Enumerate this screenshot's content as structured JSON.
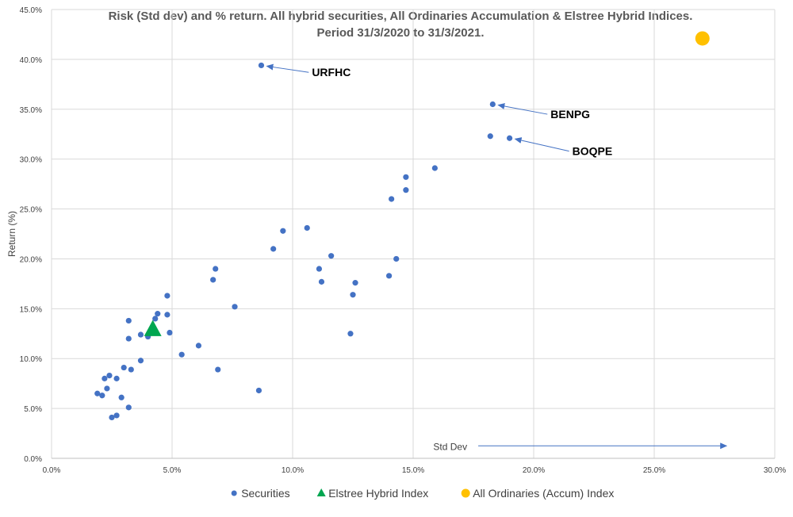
{
  "chart_data": {
    "type": "scatter",
    "title_line1": "Risk (Std dev) and % return. All hybrid securities, All Ordinaries Accumulation & Elstree Hybrid Indices.",
    "title_line2": "Period 31/3/2020 to 31/3/2021.",
    "xlabel": "",
    "ylabel": "Return (%)",
    "xlim": [
      0,
      0.3
    ],
    "ylim": [
      0,
      0.45
    ],
    "x_ticks": [
      "0.0%",
      "5.0%",
      "10.0%",
      "15.0%",
      "20.0%",
      "25.0%",
      "30.0%"
    ],
    "y_ticks": [
      "0.0%",
      "5.0%",
      "10.0%",
      "15.0%",
      "20.0%",
      "25.0%",
      "30.0%",
      "35.0%",
      "40.0%",
      "45.0%"
    ],
    "grid": true,
    "legend_position": "bottom",
    "series": [
      {
        "name": "Securities",
        "marker": "circle",
        "color": "#4472C4",
        "points": [
          [
            0.087,
            0.394
          ],
          [
            0.183,
            0.355
          ],
          [
            0.182,
            0.323
          ],
          [
            0.19,
            0.321
          ],
          [
            0.159,
            0.291
          ],
          [
            0.147,
            0.282
          ],
          [
            0.147,
            0.269
          ],
          [
            0.141,
            0.26
          ],
          [
            0.106,
            0.231
          ],
          [
            0.096,
            0.228
          ],
          [
            0.092,
            0.21
          ],
          [
            0.116,
            0.203
          ],
          [
            0.143,
            0.2
          ],
          [
            0.111,
            0.19
          ],
          [
            0.068,
            0.19
          ],
          [
            0.14,
            0.183
          ],
          [
            0.067,
            0.179
          ],
          [
            0.112,
            0.177
          ],
          [
            0.126,
            0.176
          ],
          [
            0.125,
            0.164
          ],
          [
            0.048,
            0.163
          ],
          [
            0.076,
            0.152
          ],
          [
            0.044,
            0.145
          ],
          [
            0.048,
            0.144
          ],
          [
            0.043,
            0.14
          ],
          [
            0.032,
            0.138
          ],
          [
            0.049,
            0.126
          ],
          [
            0.124,
            0.125
          ],
          [
            0.037,
            0.124
          ],
          [
            0.04,
            0.122
          ],
          [
            0.032,
            0.12
          ],
          [
            0.061,
            0.113
          ],
          [
            0.054,
            0.104
          ],
          [
            0.037,
            0.098
          ],
          [
            0.03,
            0.091
          ],
          [
            0.033,
            0.089
          ],
          [
            0.069,
            0.089
          ],
          [
            0.024,
            0.083
          ],
          [
            0.022,
            0.08
          ],
          [
            0.027,
            0.08
          ],
          [
            0.023,
            0.07
          ],
          [
            0.086,
            0.068
          ],
          [
            0.019,
            0.065
          ],
          [
            0.021,
            0.063
          ],
          [
            0.029,
            0.061
          ],
          [
            0.032,
            0.051
          ],
          [
            0.027,
            0.043
          ],
          [
            0.025,
            0.041
          ]
        ]
      },
      {
        "name": "Elstree Hybrid Index",
        "marker": "triangle",
        "color": "#00A650",
        "points": [
          [
            0.042,
            0.13
          ]
        ]
      },
      {
        "name": "All Ordinaries (Accum) Index",
        "marker": "circle-large",
        "color": "#FFC000",
        "points": [
          [
            0.27,
            0.421
          ]
        ]
      }
    ],
    "annotations": [
      {
        "text": "URFHC",
        "point": [
          0.087,
          0.394
        ],
        "label_at": [
          0.108,
          0.387
        ]
      },
      {
        "text": "BENPG",
        "point": [
          0.183,
          0.355
        ],
        "label_at": [
          0.207,
          0.345
        ]
      },
      {
        "text": "BOQPE",
        "point": [
          0.19,
          0.321
        ],
        "label_at": [
          0.216,
          0.308
        ]
      }
    ],
    "std_dev_arrow": {
      "text": "Std Dev",
      "from": [
        0.177,
        0.0125
      ],
      "to": [
        0.28,
        0.0125
      ]
    }
  }
}
